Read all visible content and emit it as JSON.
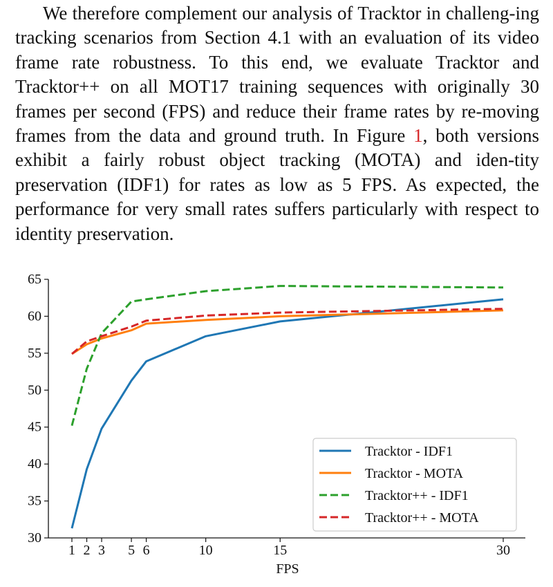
{
  "text": {
    "part1": "We therefore complement our analysis of Tracktor in challeng-ing tracking scenarios from Section 4.1 with an evaluation of its video frame rate robustness.  To this end, we evaluate Tracktor and Tracktor++ on all MOT17 training sequences with originally 30 frames per second (FPS) and reduce their frame rates by re-moving frames from the data and ground truth.  In Figure ",
    "figure_ref": "1",
    "part2": ", both versions exhibit a fairly robust object tracking (MOTA) and iden-tity preservation (IDF1) for rates as low as 5 FPS. As expected, the performance for very small rates suffers particularly with respect to identity preservation."
  },
  "chart_data": {
    "type": "line",
    "xlabel": "FPS",
    "ylabel": "",
    "xlim": [
      1,
      30
    ],
    "ylim": [
      30,
      65
    ],
    "xticks": [
      1,
      2,
      3,
      5,
      6,
      10,
      15,
      30
    ],
    "yticks": [
      30,
      35,
      40,
      45,
      50,
      55,
      60,
      65
    ],
    "legend_position": "bottom-right",
    "grid": false,
    "series": [
      {
        "name": "Tracktor - IDF1",
        "color": "#1f77b4",
        "dash": "solid",
        "x": [
          1,
          2,
          3,
          5,
          6,
          10,
          15,
          30
        ],
        "y": [
          31.3,
          39.3,
          44.8,
          51.3,
          53.9,
          57.3,
          59.3,
          62.3
        ]
      },
      {
        "name": "Tracktor - MOTA",
        "color": "#ff7f0e",
        "dash": "solid",
        "x": [
          1,
          2,
          3,
          5,
          6,
          10,
          15,
          30
        ],
        "y": [
          54.9,
          56.2,
          57.0,
          58.1,
          59.0,
          59.5,
          60.0,
          60.8
        ]
      },
      {
        "name": "Tracktor++ - IDF1",
        "color": "#2ca02c",
        "dash": "dashed",
        "x": [
          1,
          2,
          3,
          5,
          6,
          10,
          15,
          30
        ],
        "y": [
          45.2,
          52.9,
          57.7,
          62.0,
          62.3,
          63.4,
          64.1,
          63.9
        ]
      },
      {
        "name": "Tracktor++ - MOTA",
        "color": "#d62728",
        "dash": "dashed",
        "x": [
          1,
          2,
          3,
          5,
          6,
          10,
          15,
          30
        ],
        "y": [
          54.9,
          56.6,
          57.3,
          58.6,
          59.4,
          60.1,
          60.5,
          61.0
        ]
      }
    ]
  }
}
